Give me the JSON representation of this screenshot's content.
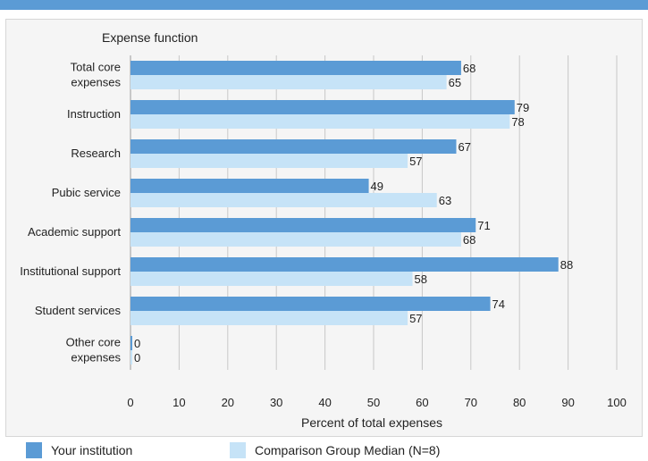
{
  "colors": {
    "accent_bar": "#5b9bd5",
    "series1": "#5b9bd5",
    "series2": "#c6e3f7",
    "grid": "#c8c8c8"
  },
  "chart_data": {
    "type": "bar",
    "orientation": "horizontal",
    "title": "Expense function",
    "xlabel": "Percent of total expenses",
    "xlim": [
      0,
      100
    ],
    "xticks": [
      0,
      10,
      20,
      30,
      40,
      50,
      60,
      70,
      80,
      90,
      100
    ],
    "grid": "vertical",
    "legend_position": "bottom",
    "categories": [
      [
        "Total core",
        "expenses"
      ],
      [
        "Instruction"
      ],
      [
        "Research"
      ],
      [
        "Pubic service"
      ],
      [
        "Academic support"
      ],
      [
        "Institutional support"
      ],
      [
        "Student services"
      ],
      [
        "Other core",
        "expenses"
      ]
    ],
    "series": [
      {
        "name": "Your institution",
        "color": "#5b9bd5",
        "values": [
          68,
          79,
          67,
          49,
          71,
          88,
          74,
          0
        ]
      },
      {
        "name": "Comparison Group Median (N=8)",
        "color": "#c6e3f7",
        "values": [
          65,
          78,
          57,
          63,
          68,
          58,
          57,
          0
        ]
      }
    ]
  },
  "legend": {
    "items": [
      {
        "label": "Your institution",
        "color": "#5b9bd5"
      },
      {
        "label": "Comparison Group Median (N=8)",
        "color": "#c6e3f7"
      }
    ]
  }
}
